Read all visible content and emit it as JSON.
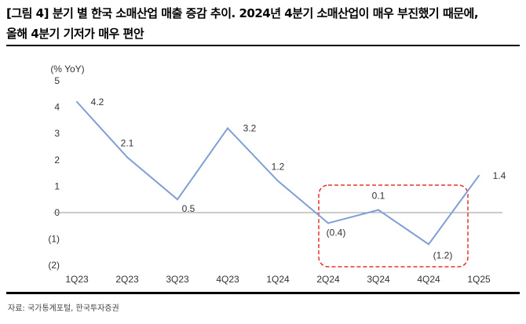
{
  "title_line1": "[그림 4] 분기 별 한국 소매산업 매출 증감 추이. 2024년 4분기 소매산업이 매우 부진했기 때문에,",
  "title_line2": "올해 4분기 기저가 매우 편안",
  "source": "자료: 국가통계포털, 한국투자증권",
  "chart_data": {
    "type": "line",
    "ylabel": "(% YoY)",
    "categories": [
      "1Q23",
      "2Q23",
      "3Q23",
      "4Q23",
      "1Q24",
      "2Q24",
      "3Q24",
      "4Q24",
      "1Q25"
    ],
    "values": [
      4.2,
      2.1,
      0.5,
      3.2,
      1.2,
      -0.4,
      0.1,
      -1.2,
      1.4
    ],
    "data_labels": [
      "4.2",
      "2.1",
      "0.5",
      "3.2",
      "1.2",
      "(0.4)",
      "0.1",
      "(1.2)",
      "1.4"
    ],
    "ylim": [
      -2,
      5
    ],
    "yticks": [
      5,
      4,
      3,
      2,
      1,
      0,
      -1,
      -2
    ],
    "ytick_labels": [
      "5",
      "4",
      "3",
      "2",
      "1",
      "0",
      "(1)",
      "(2)"
    ],
    "grid": false,
    "line_color": "#7f9fd6",
    "highlight_color": "#e8302a",
    "highlight_range": [
      "2Q24",
      "4Q24"
    ]
  }
}
